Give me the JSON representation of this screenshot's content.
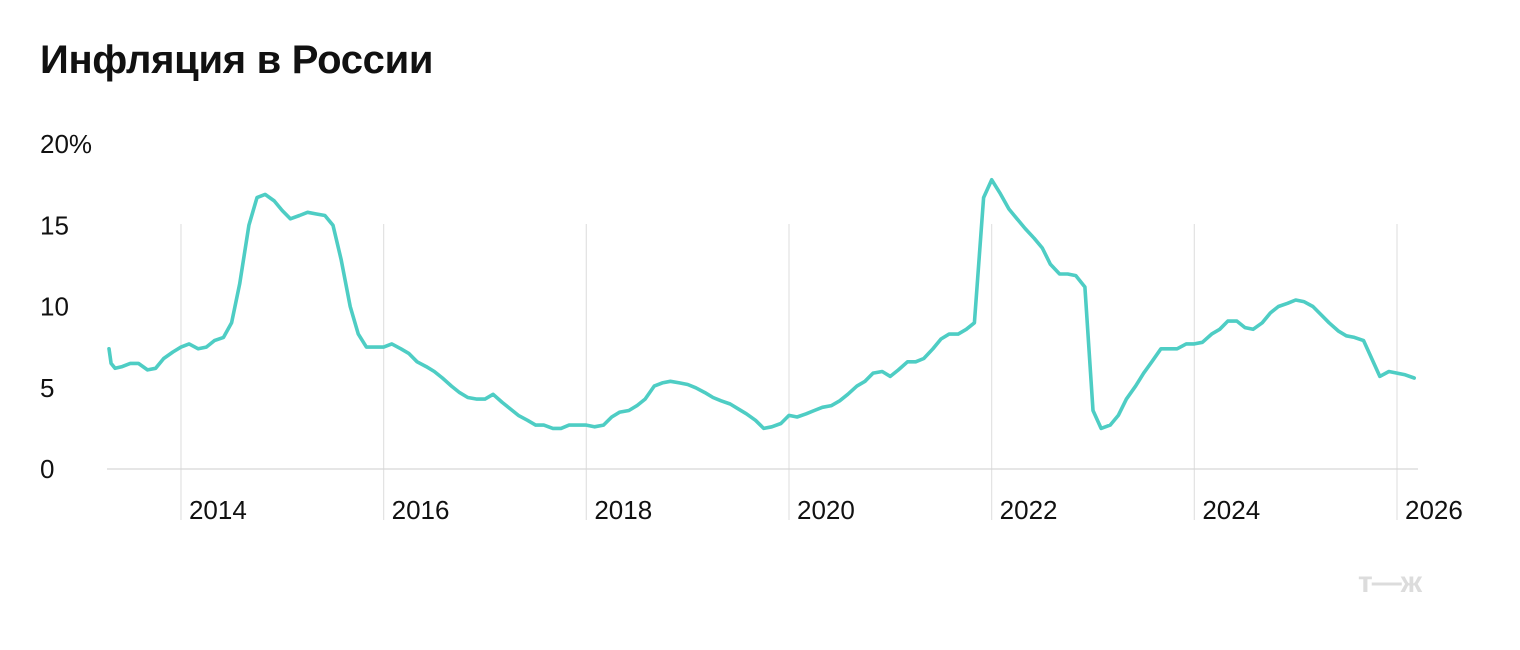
{
  "title": "Инфляция в России",
  "brand_logo": "т—ж",
  "chart_data": {
    "type": "line",
    "title": "Инфляция в России",
    "xlabel": "",
    "ylabel": "",
    "ylim": [
      0,
      20
    ],
    "xlim": [
      2013.27,
      2026.0
    ],
    "yticks": [
      {
        "value": 0,
        "label": "0"
      },
      {
        "value": 5,
        "label": "5"
      },
      {
        "value": 10,
        "label": "10"
      },
      {
        "value": 15,
        "label": "15"
      },
      {
        "value": 20,
        "label": "20%"
      }
    ],
    "xticks": [
      {
        "value": 2014,
        "label": "2014"
      },
      {
        "value": 2016,
        "label": "2016"
      },
      {
        "value": 2018,
        "label": "2018"
      },
      {
        "value": 2020,
        "label": "2020"
      },
      {
        "value": 2022,
        "label": "2022"
      },
      {
        "value": 2024,
        "label": "2024"
      },
      {
        "value": 2026,
        "label": "2026"
      }
    ],
    "grid": "vertical-at-year-ticks",
    "color": "#4ecdc4",
    "series": [
      {
        "values": [
          [
            2013.29,
            7.4
          ],
          [
            2013.31,
            6.5
          ],
          [
            2013.35,
            6.2
          ],
          [
            2013.42,
            6.3
          ],
          [
            2013.5,
            6.5
          ],
          [
            2013.58,
            6.5
          ],
          [
            2013.67,
            6.1
          ],
          [
            2013.75,
            6.2
          ],
          [
            2013.83,
            6.8
          ],
          [
            2013.92,
            7.2
          ],
          [
            2014.0,
            7.5
          ],
          [
            2014.08,
            7.7
          ],
          [
            2014.17,
            7.4
          ],
          [
            2014.25,
            7.5
          ],
          [
            2014.33,
            7.9
          ],
          [
            2014.42,
            8.1
          ],
          [
            2014.5,
            9.0
          ],
          [
            2014.58,
            11.4
          ],
          [
            2014.67,
            15.0
          ],
          [
            2014.75,
            16.7
          ],
          [
            2014.83,
            16.9
          ],
          [
            2014.92,
            16.5
          ],
          [
            2015.0,
            15.9
          ],
          [
            2015.08,
            15.4
          ],
          [
            2015.17,
            15.6
          ],
          [
            2015.25,
            15.8
          ],
          [
            2015.33,
            15.7
          ],
          [
            2015.42,
            15.6
          ],
          [
            2015.5,
            15.0
          ],
          [
            2015.58,
            12.9
          ],
          [
            2015.67,
            10.0
          ],
          [
            2015.75,
            8.3
          ],
          [
            2015.83,
            7.5
          ],
          [
            2015.92,
            7.5
          ],
          [
            2016.0,
            7.5
          ],
          [
            2016.08,
            7.7
          ],
          [
            2016.17,
            7.4
          ],
          [
            2016.25,
            7.1
          ],
          [
            2016.33,
            6.6
          ],
          [
            2016.42,
            6.3
          ],
          [
            2016.5,
            6.0
          ],
          [
            2016.58,
            5.6
          ],
          [
            2016.67,
            5.1
          ],
          [
            2016.75,
            4.7
          ],
          [
            2016.83,
            4.4
          ],
          [
            2016.92,
            4.3
          ],
          [
            2017.0,
            4.3
          ],
          [
            2017.08,
            4.6
          ],
          [
            2017.17,
            4.1
          ],
          [
            2017.25,
            3.7
          ],
          [
            2017.33,
            3.3
          ],
          [
            2017.42,
            3.0
          ],
          [
            2017.5,
            2.7
          ],
          [
            2017.58,
            2.7
          ],
          [
            2017.67,
            2.5
          ],
          [
            2017.75,
            2.5
          ],
          [
            2017.83,
            2.7
          ],
          [
            2017.92,
            2.7
          ],
          [
            2018.0,
            2.7
          ],
          [
            2018.08,
            2.6
          ],
          [
            2018.17,
            2.7
          ],
          [
            2018.25,
            3.2
          ],
          [
            2018.33,
            3.5
          ],
          [
            2018.42,
            3.6
          ],
          [
            2018.5,
            3.9
          ],
          [
            2018.58,
            4.3
          ],
          [
            2018.67,
            5.1
          ],
          [
            2018.75,
            5.3
          ],
          [
            2018.83,
            5.4
          ],
          [
            2018.92,
            5.3
          ],
          [
            2019.0,
            5.2
          ],
          [
            2019.08,
            5.0
          ],
          [
            2019.17,
            4.7
          ],
          [
            2019.25,
            4.4
          ],
          [
            2019.33,
            4.2
          ],
          [
            2019.42,
            4.0
          ],
          [
            2019.5,
            3.7
          ],
          [
            2019.58,
            3.4
          ],
          [
            2019.67,
            3.0
          ],
          [
            2019.75,
            2.5
          ],
          [
            2019.83,
            2.6
          ],
          [
            2019.92,
            2.8
          ],
          [
            2020.0,
            3.3
          ],
          [
            2020.08,
            3.2
          ],
          [
            2020.17,
            3.4
          ],
          [
            2020.25,
            3.6
          ],
          [
            2020.33,
            3.8
          ],
          [
            2020.42,
            3.9
          ],
          [
            2020.5,
            4.2
          ],
          [
            2020.58,
            4.6
          ],
          [
            2020.67,
            5.1
          ],
          [
            2020.75,
            5.4
          ],
          [
            2020.83,
            5.9
          ],
          [
            2020.92,
            6.0
          ],
          [
            2021.0,
            5.7
          ],
          [
            2021.08,
            6.1
          ],
          [
            2021.17,
            6.6
          ],
          [
            2021.25,
            6.6
          ],
          [
            2021.33,
            6.8
          ],
          [
            2021.42,
            7.4
          ],
          [
            2021.5,
            8.0
          ],
          [
            2021.58,
            8.3
          ],
          [
            2021.67,
            8.3
          ],
          [
            2021.75,
            8.6
          ],
          [
            2021.83,
            9.0
          ],
          [
            2021.92,
            16.7
          ],
          [
            2022.0,
            17.8
          ],
          [
            2022.08,
            17.0
          ],
          [
            2022.17,
            16.0
          ],
          [
            2022.25,
            15.4
          ],
          [
            2022.33,
            14.8
          ],
          [
            2022.42,
            14.2
          ],
          [
            2022.5,
            13.6
          ],
          [
            2022.58,
            12.6
          ],
          [
            2022.67,
            12.0
          ],
          [
            2022.75,
            12.0
          ],
          [
            2022.83,
            11.9
          ],
          [
            2022.92,
            11.2
          ],
          [
            2023.0,
            3.6
          ],
          [
            2023.08,
            2.5
          ],
          [
            2023.17,
            2.7
          ],
          [
            2023.25,
            3.3
          ],
          [
            2023.33,
            4.3
          ],
          [
            2023.42,
            5.1
          ],
          [
            2023.5,
            5.9
          ],
          [
            2023.58,
            6.6
          ],
          [
            2023.67,
            7.4
          ],
          [
            2023.75,
            7.4
          ],
          [
            2023.83,
            7.4
          ],
          [
            2023.92,
            7.7
          ],
          [
            2024.0,
            7.7
          ],
          [
            2024.08,
            7.8
          ],
          [
            2024.17,
            8.3
          ],
          [
            2024.25,
            8.6
          ],
          [
            2024.33,
            9.1
          ],
          [
            2024.42,
            9.1
          ],
          [
            2024.5,
            8.7
          ],
          [
            2024.58,
            8.6
          ],
          [
            2024.67,
            9.0
          ],
          [
            2024.75,
            9.6
          ],
          [
            2024.83,
            10.0
          ],
          [
            2024.92,
            10.2
          ],
          [
            2025.0,
            10.4
          ],
          [
            2025.08,
            10.3
          ],
          [
            2025.17,
            10.0
          ],
          [
            2025.25,
            9.5
          ],
          [
            2025.33,
            9.0
          ],
          [
            2025.42,
            8.5
          ],
          [
            2025.5,
            8.2
          ],
          [
            2025.58,
            8.1
          ],
          [
            2025.67,
            7.9
          ],
          [
            2025.75,
            6.8
          ],
          [
            2025.83,
            5.7
          ],
          [
            2025.92,
            6.0
          ],
          [
            2026.0,
            5.9
          ],
          [
            2026.08,
            5.8
          ],
          [
            2026.17,
            5.6
          ]
        ]
      }
    ]
  }
}
